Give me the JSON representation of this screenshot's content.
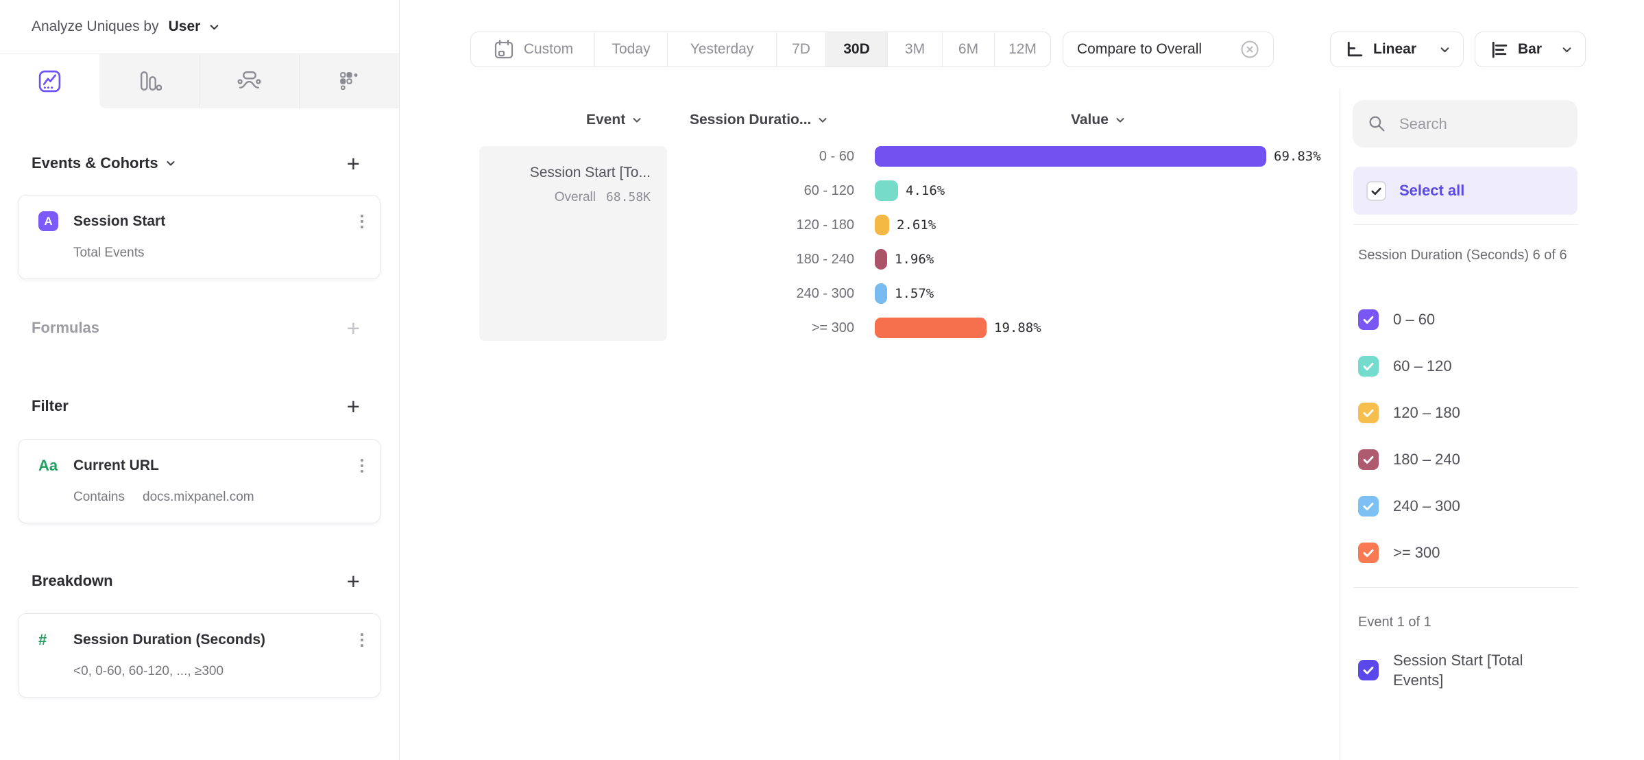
{
  "header": {
    "title_prefix": "Analyze Uniques by",
    "entity": "User"
  },
  "sidebar": {
    "tabs": [
      {
        "name": "insights",
        "selected": true
      },
      {
        "name": "bar-chart",
        "selected": false
      },
      {
        "name": "flows",
        "selected": false
      },
      {
        "name": "retention",
        "selected": false
      }
    ],
    "events_section": {
      "title": "Events & Cohorts",
      "add_label": "+"
    },
    "event_card": {
      "badge": "A",
      "title": "Session Start",
      "subtitle": "Total Events"
    },
    "formulas_section": {
      "title": "Formulas",
      "add_label": "+"
    },
    "filter_section": {
      "title": "Filter",
      "add_label": "+"
    },
    "filter_card": {
      "badge": "Aa",
      "title": "Current URL",
      "operator": "Contains",
      "value": "docs.mixpanel.com"
    },
    "breakdown_section": {
      "title": "Breakdown",
      "add_label": "+"
    },
    "breakdown_card": {
      "badge": "#",
      "title": "Session Duration (Seconds)",
      "subtitle": "<0, 0-60, 60-120, ..., ≥300"
    }
  },
  "toolbar": {
    "date_ranges": [
      {
        "label": "Custom",
        "icon": "calendar",
        "selected": false
      },
      {
        "label": "Today",
        "selected": false
      },
      {
        "label": "Yesterday",
        "selected": false
      },
      {
        "label": "7D",
        "selected": false
      },
      {
        "label": "30D",
        "selected": true
      },
      {
        "label": "3M",
        "selected": false
      },
      {
        "label": "6M",
        "selected": false
      },
      {
        "label": "12M",
        "selected": false
      }
    ],
    "compare_label": "Compare to Overall",
    "scale_label": "Linear",
    "chart_type_label": "Bar"
  },
  "chart": {
    "col_event": "Event",
    "col_breakdown": "Session Duratio...",
    "col_value": "Value",
    "event_cell": {
      "title": "Session Start [To...",
      "overall_label": "Overall",
      "overall_value": "68.58K"
    }
  },
  "chart_data": {
    "type": "bar",
    "orientation": "horizontal",
    "categories": [
      "0 - 60",
      "60 - 120",
      "120 - 180",
      "180 - 240",
      "240 - 300",
      ">= 300"
    ],
    "values": [
      69.83,
      4.16,
      2.61,
      1.96,
      1.57,
      19.88
    ],
    "value_labels": [
      "69.83%",
      "4.16%",
      "2.61%",
      "1.96%",
      "1.57%",
      "19.88%"
    ],
    "colors": [
      "#7351f1",
      "#76dbc9",
      "#f4b942",
      "#ab5369",
      "#79baf0",
      "#f7704d"
    ],
    "series_name": "Session Start [Total Events]",
    "overall_value": "68.58K",
    "xlim": [
      0,
      80
    ],
    "grid": false,
    "legend": false
  },
  "panel": {
    "search_placeholder": "Search",
    "select_all_label": "Select all",
    "breakdown_meta": "Session Duration (Seconds) 6 of 6",
    "breakdown_items": [
      {
        "label": "0 – 60",
        "color": "#7a56f2",
        "checked": true
      },
      {
        "label": "60 – 120",
        "color": "#74dcce",
        "checked": true
      },
      {
        "label": "120 – 180",
        "color": "#f6be4d",
        "checked": true
      },
      {
        "label": "180 – 240",
        "color": "#b05a70",
        "checked": true
      },
      {
        "label": "240 – 300",
        "color": "#7dc0f3",
        "checked": true
      },
      {
        "label": ">= 300",
        "color": "#f97a52",
        "checked": true
      }
    ],
    "event_meta": "Event 1 of 1",
    "event_items": [
      {
        "label": "Session Start [Total Events]",
        "color": "#5b48ea",
        "checked": true
      }
    ]
  }
}
